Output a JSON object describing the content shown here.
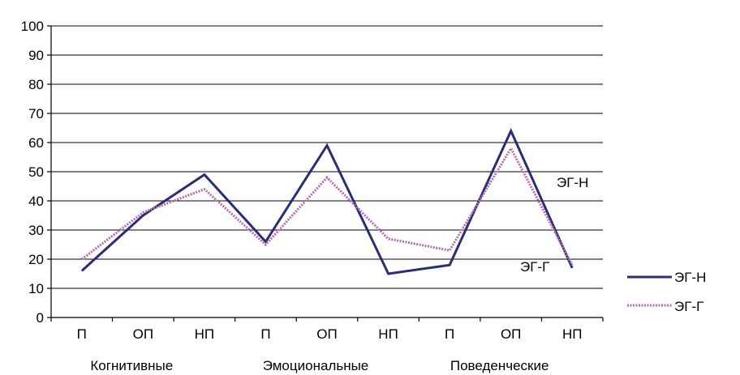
{
  "chart_data": {
    "type": "line",
    "title": "",
    "xlabel": "",
    "ylabel": "",
    "ylim": [
      0,
      100
    ],
    "yticks": [
      0,
      10,
      20,
      30,
      40,
      50,
      60,
      70,
      80,
      90,
      100
    ],
    "grid": true,
    "legend_position": "right",
    "categories": [
      "П",
      "ОП",
      "НП",
      "П",
      "ОП",
      "НП",
      "П",
      "ОП",
      "НП"
    ],
    "groups": [
      "Когнитивные",
      "Эмоциональные",
      "Поведенческие"
    ],
    "series": [
      {
        "name": "ЭГ-Н",
        "color": "#2b2e73",
        "style": "solid",
        "values": [
          16,
          35,
          49,
          26,
          59,
          15,
          18,
          64,
          17
        ]
      },
      {
        "name": "ЭГ-Г",
        "color": "#b36bb0",
        "style": "dotted",
        "values": [
          20,
          36,
          44,
          25,
          48,
          27,
          23,
          58,
          18
        ]
      }
    ],
    "annotations": [
      "ЭГ-Н",
      "ЭГ-Г"
    ]
  }
}
